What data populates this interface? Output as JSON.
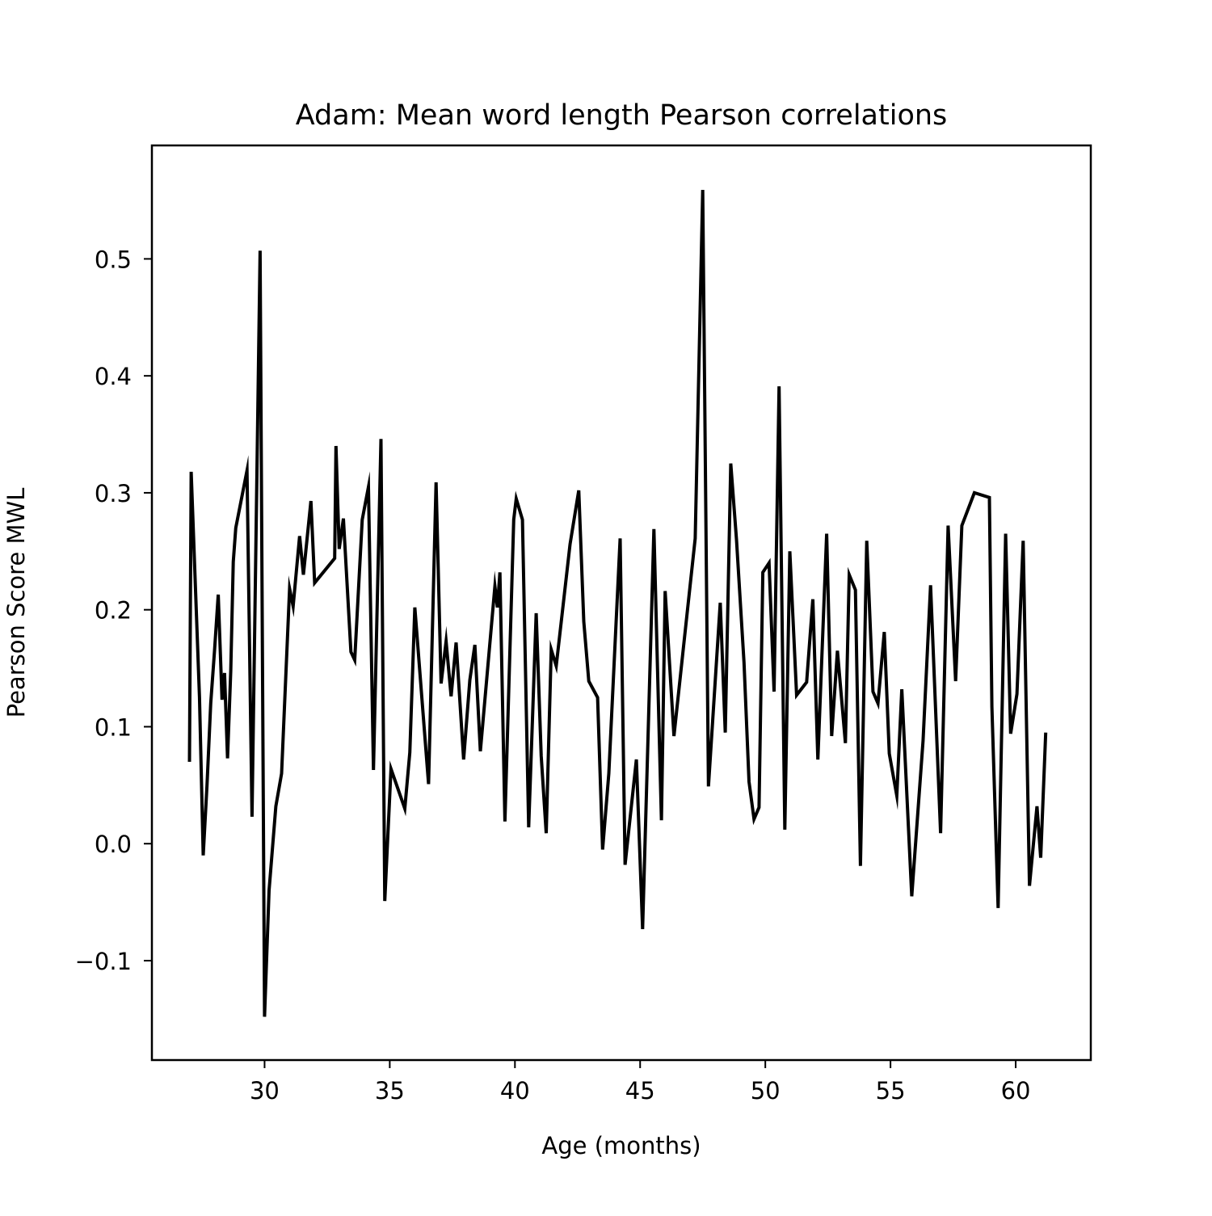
{
  "chart_data": {
    "type": "line",
    "title": "Adam: Mean word length Pearson correlations",
    "xlabel": "Age (months)",
    "ylabel": "Pearson Score MWL",
    "xlim": [
      25.5,
      63.0
    ],
    "ylim": [
      -0.185,
      0.597
    ],
    "xticks": [
      30,
      35,
      40,
      45,
      50,
      55,
      60
    ],
    "xtick_labels": [
      "30",
      "35",
      "40",
      "45",
      "50",
      "55",
      "60"
    ],
    "yticks": [
      -0.1,
      0.0,
      0.1,
      0.2,
      0.3,
      0.4,
      0.5
    ],
    "ytick_labels": [
      "−0.1",
      "0.0",
      "0.1",
      "0.2",
      "0.3",
      "0.4",
      "0.5"
    ],
    "grid": false,
    "series": [
      {
        "color": "#000000",
        "x": [
          27.0,
          27.07,
          27.4,
          27.55,
          27.7,
          27.85,
          28.0,
          28.15,
          28.3,
          28.4,
          28.52,
          28.65,
          28.75,
          28.85,
          29.3,
          29.5,
          29.82,
          30.0,
          30.18,
          30.45,
          30.68,
          31.0,
          31.14,
          31.4,
          31.55,
          31.85,
          32.0,
          32.8,
          32.85,
          32.98,
          33.15,
          33.45,
          33.6,
          33.9,
          34.15,
          34.35,
          34.65,
          34.8,
          35.05,
          35.6,
          35.8,
          36.0,
          36.55,
          36.85,
          37.05,
          37.25,
          37.45,
          37.65,
          37.95,
          38.2,
          38.4,
          38.62,
          39.2,
          39.3,
          39.4,
          39.6,
          39.95,
          40.05,
          40.3,
          40.55,
          40.85,
          41.05,
          41.25,
          41.45,
          41.65,
          42.2,
          42.55,
          42.75,
          42.95,
          43.3,
          43.5,
          43.75,
          44.2,
          44.4,
          44.85,
          45.1,
          45.55,
          45.85,
          46.0,
          46.35,
          46.75,
          47.2,
          47.5,
          47.73,
          48.2,
          48.4,
          48.62,
          48.85,
          49.15,
          49.35,
          49.55,
          49.75,
          49.9,
          50.15,
          50.35,
          50.55,
          50.78,
          50.98,
          51.25,
          51.65,
          51.9,
          52.1,
          52.45,
          52.65,
          52.88,
          53.2,
          53.35,
          53.6,
          53.8,
          54.05,
          54.3,
          54.5,
          54.75,
          54.95,
          55.25,
          55.45,
          55.85,
          56.3,
          56.6,
          57.0,
          57.3,
          57.6,
          57.85,
          58.35,
          58.95,
          59.05,
          59.3,
          59.6,
          59.8,
          60.05,
          60.3,
          60.55,
          60.85,
          61.0,
          61.2
        ],
        "y": [
          0.07,
          0.318,
          0.125,
          -0.01,
          0.05,
          0.12,
          0.165,
          0.213,
          0.123,
          0.146,
          0.073,
          0.148,
          0.241,
          0.27,
          0.319,
          0.023,
          0.507,
          -0.148,
          -0.04,
          0.032,
          0.06,
          0.218,
          0.203,
          0.263,
          0.23,
          0.293,
          0.223,
          0.244,
          0.34,
          0.252,
          0.278,
          0.164,
          0.157,
          0.277,
          0.305,
          0.063,
          0.346,
          -0.049,
          0.064,
          0.03,
          0.078,
          0.202,
          0.051,
          0.309,
          0.137,
          0.173,
          0.126,
          0.172,
          0.072,
          0.14,
          0.17,
          0.079,
          0.22,
          0.202,
          0.232,
          0.019,
          0.277,
          0.295,
          0.277,
          0.014,
          0.197,
          0.075,
          0.009,
          0.166,
          0.152,
          0.256,
          0.302,
          0.19,
          0.139,
          0.125,
          -0.005,
          0.06,
          0.261,
          -0.018,
          0.072,
          -0.073,
          0.269,
          0.02,
          0.216,
          0.092,
          0.172,
          0.261,
          0.559,
          0.049,
          0.206,
          0.095,
          0.325,
          0.26,
          0.155,
          0.053,
          0.021,
          0.031,
          0.232,
          0.24,
          0.13,
          0.391,
          0.012,
          0.25,
          0.127,
          0.138,
          0.209,
          0.072,
          0.265,
          0.092,
          0.165,
          0.086,
          0.23,
          0.217,
          -0.019,
          0.259,
          0.13,
          0.12,
          0.181,
          0.077,
          0.041,
          0.132,
          -0.045,
          0.088,
          0.221,
          0.009,
          0.272,
          0.139,
          0.272,
          0.3,
          0.296,
          0.117,
          -0.055,
          0.265,
          0.094,
          0.128,
          0.259,
          -0.036,
          0.032,
          -0.012,
          0.095
        ]
      }
    ]
  }
}
